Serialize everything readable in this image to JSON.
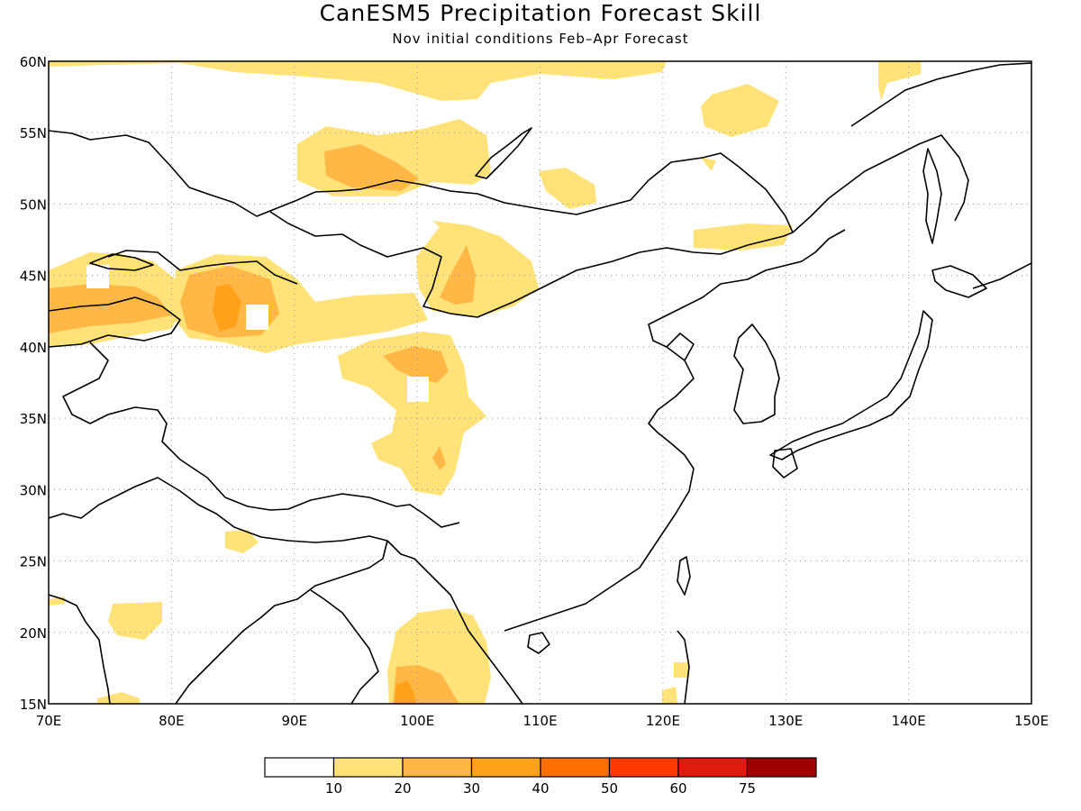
{
  "title": "CanESM5 Precipitation Forecast Skill",
  "subtitle": "Nov initial conditions  Feb–Apr Forecast",
  "map": {
    "lon_range": [
      70,
      150
    ],
    "lat_range": [
      15,
      60
    ],
    "grid": "dotted",
    "lat_ticks": [
      "15N",
      "20N",
      "25N",
      "30N",
      "35N",
      "40N",
      "45N",
      "50N",
      "55N",
      "60N"
    ],
    "lon_ticks": [
      "70E",
      "80E",
      "90E",
      "100E",
      "110E",
      "120E",
      "130E",
      "140E",
      "150E"
    ]
  },
  "colorbar": {
    "labels": [
      "10",
      "20",
      "30",
      "40",
      "50",
      "60",
      "75"
    ],
    "colors": [
      "#ffffff",
      "#ffe278",
      "#ffb845",
      "#ffa21a",
      "#ff7000",
      "#ff3a00",
      "#e01a0c",
      "#a00000"
    ]
  },
  "skill_regions": [
    {
      "name": "northern-edge",
      "level": "10-20"
    },
    {
      "name": "siberia-sayan",
      "level": "20-30"
    },
    {
      "name": "kazakhstan",
      "level": "20-40"
    },
    {
      "name": "tian-shan",
      "level": "20-40"
    },
    {
      "name": "mongolia-gobi",
      "level": "10-30"
    },
    {
      "name": "qinghai-tibet",
      "level": "10-30"
    },
    {
      "name": "northeast-china",
      "level": "10-20"
    },
    {
      "name": "indochina",
      "level": "10-40"
    }
  ]
}
